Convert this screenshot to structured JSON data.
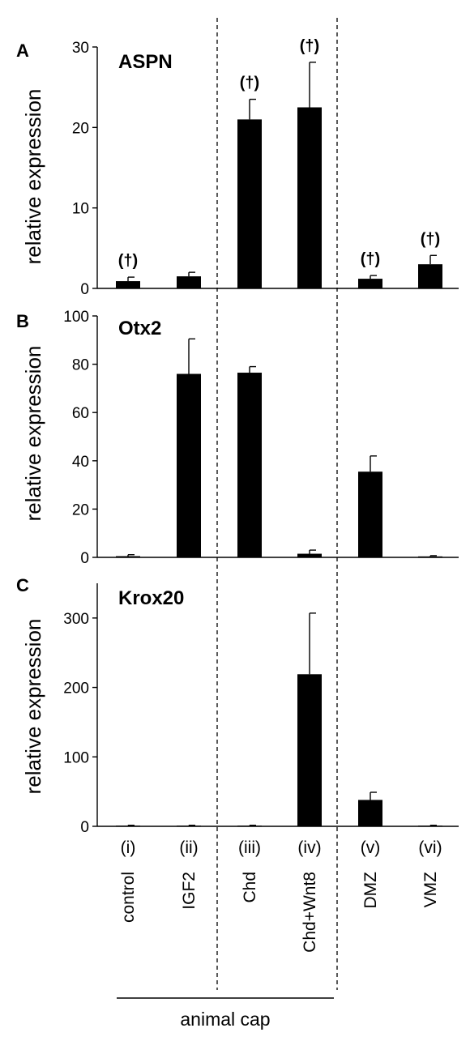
{
  "roman_labels": [
    "(i)",
    "(ii)",
    "(iii)",
    "(iv)",
    "(v)",
    "(vi)"
  ],
  "condition_labels": [
    "control",
    "IGF2",
    "Chd",
    "Chd+Wnt8",
    "DMZ",
    "VMZ"
  ],
  "group_label": "animal cap",
  "chart_data": [
    {
      "type": "bar",
      "panel": "A",
      "title": "ASPN",
      "ylabel": "relative expression",
      "ylim": [
        0,
        30
      ],
      "yticks": [
        0,
        10,
        20,
        30
      ],
      "categories": [
        "control",
        "IGF2",
        "Chd",
        "Chd+Wnt8",
        "DMZ",
        "VMZ"
      ],
      "values": [
        0.9,
        1.5,
        21.0,
        22.5,
        1.2,
        3.0
      ],
      "errors": [
        0.5,
        0.5,
        2.5,
        5.6,
        0.4,
        1.1
      ],
      "annotations": [
        "(†)",
        "",
        "(†)",
        "(†)",
        "(†)",
        "(†)"
      ]
    },
    {
      "type": "bar",
      "panel": "B",
      "title": "Otx2",
      "ylabel": "relative expression",
      "ylim": [
        0,
        100
      ],
      "yticks": [
        0,
        20,
        40,
        60,
        80,
        100
      ],
      "categories": [
        "control",
        "IGF2",
        "Chd",
        "Chd+Wnt8",
        "DMZ",
        "VMZ"
      ],
      "values": [
        0.5,
        76,
        76.5,
        1.5,
        35.5,
        0.4
      ],
      "errors": [
        0.6,
        14.5,
        2.5,
        1.5,
        6.5,
        0.3
      ],
      "annotations": [
        "",
        "",
        "",
        "",
        "",
        ""
      ]
    },
    {
      "type": "bar",
      "panel": "C",
      "title": "Krox20",
      "ylabel": "relative expression",
      "ylim": [
        0,
        350
      ],
      "yticks": [
        0,
        100,
        200,
        300
      ],
      "categories": [
        "control",
        "IGF2",
        "Chd",
        "Chd+Wnt8",
        "DMZ",
        "VMZ"
      ],
      "values": [
        1,
        1,
        1,
        219,
        38,
        1
      ],
      "errors": [
        0.5,
        0.5,
        0.5,
        88,
        11,
        0.5
      ],
      "annotations": [
        "",
        "",
        "",
        "",
        "",
        ""
      ]
    }
  ]
}
